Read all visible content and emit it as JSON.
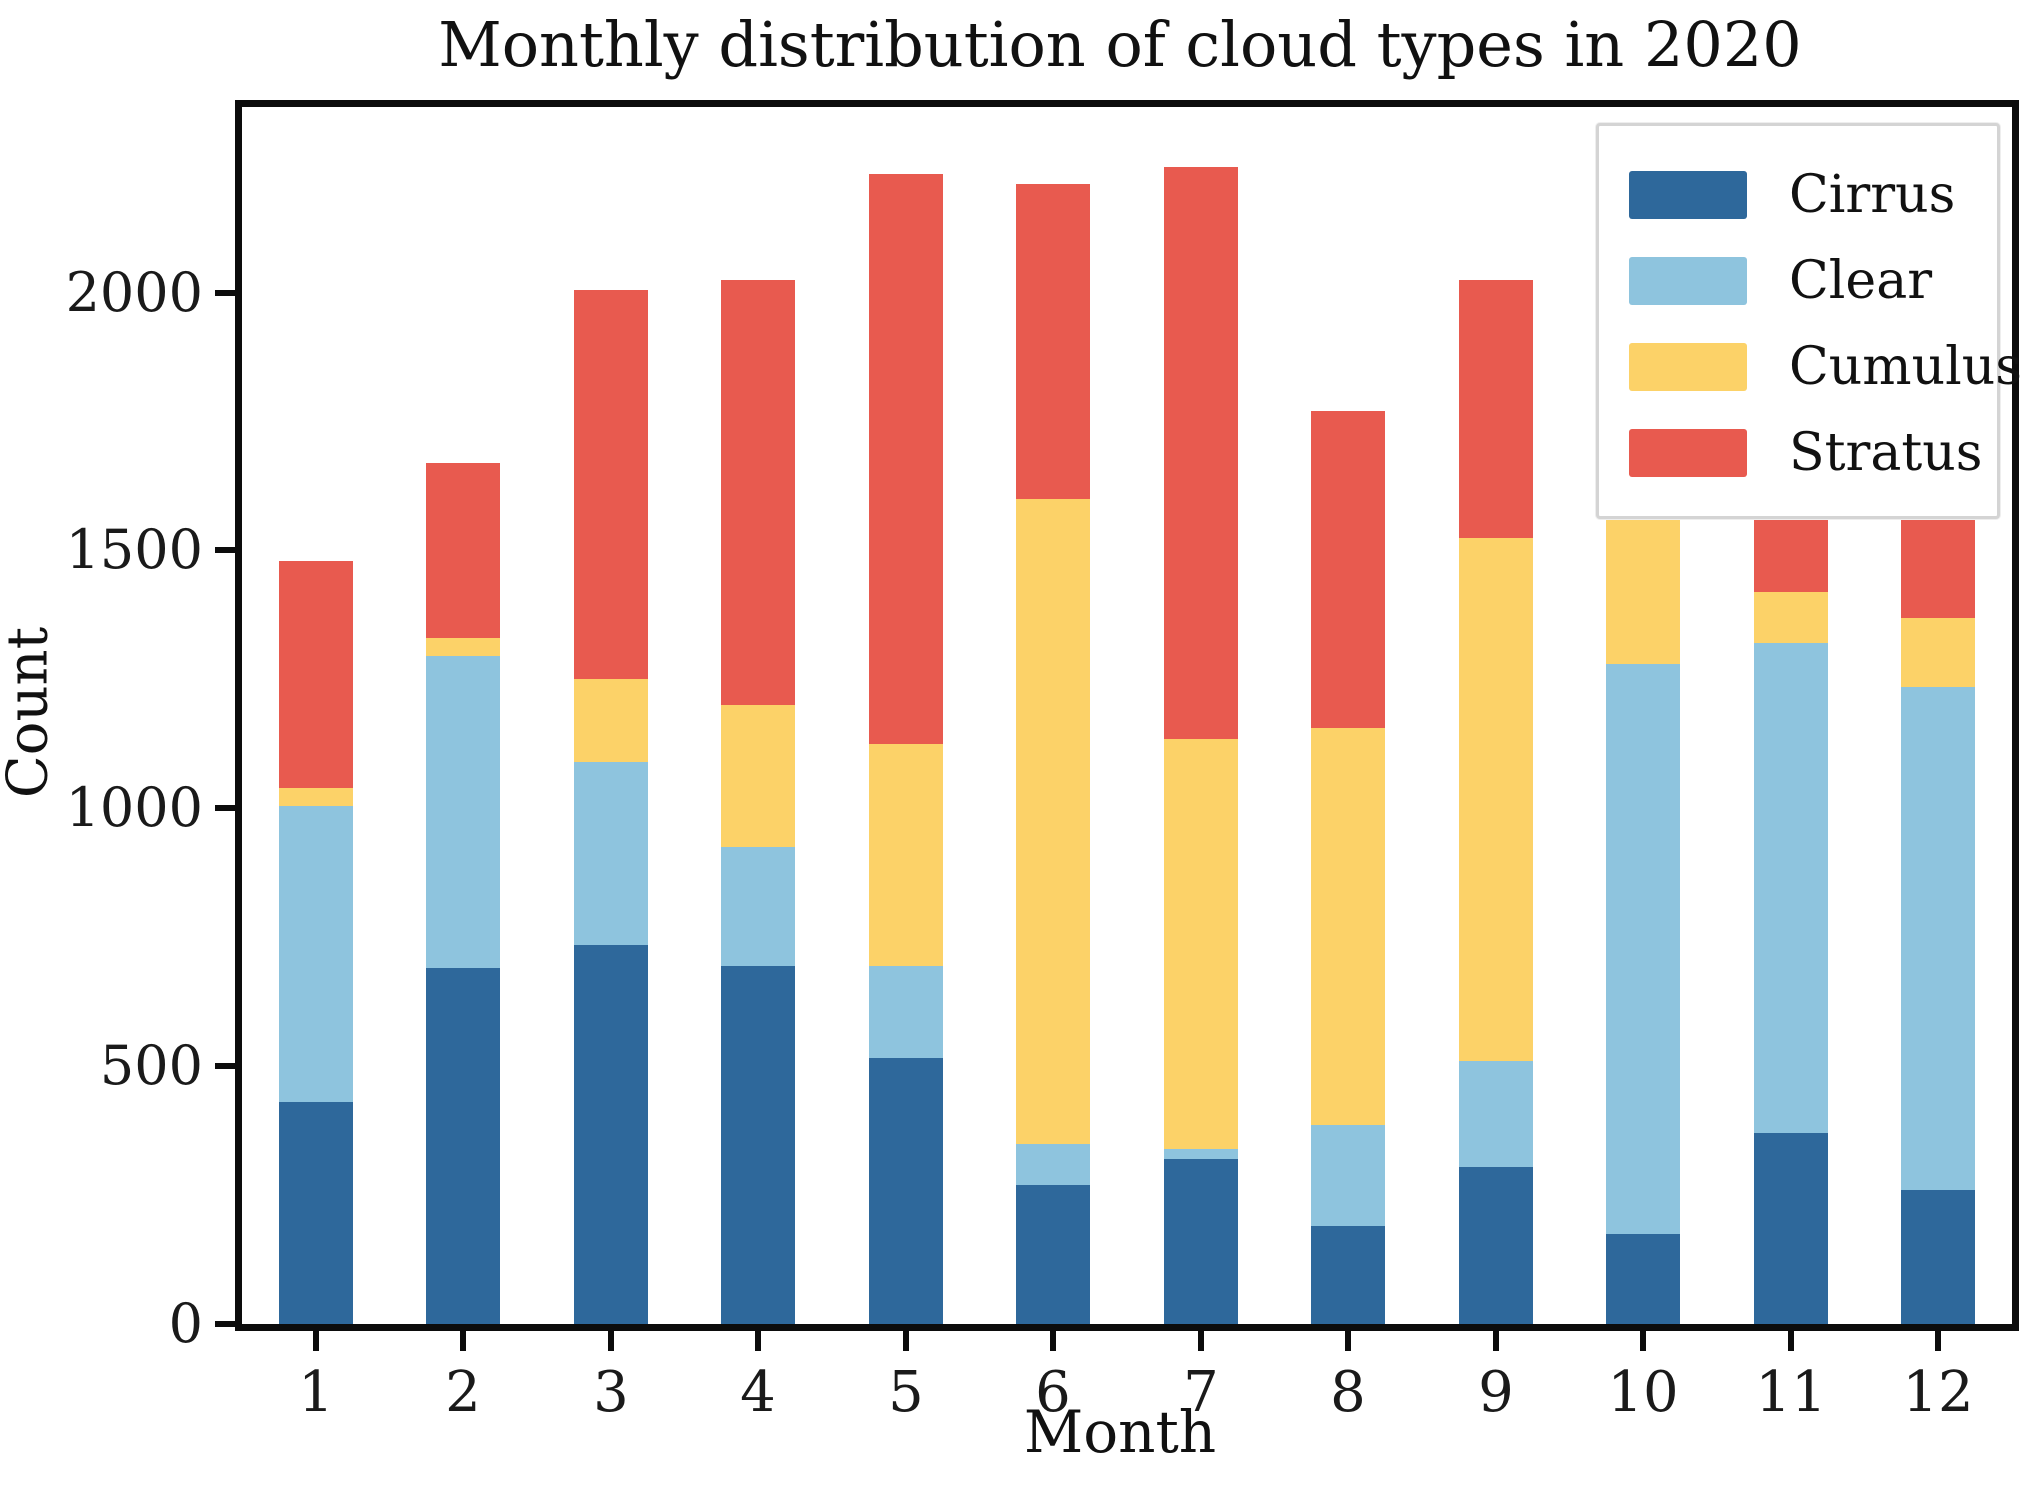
{
  "chart_data": {
    "type": "bar",
    "stacked": true,
    "title": "Monthly distribution of cloud types in 2020",
    "xlabel": "Month",
    "ylabel": "Count",
    "categories": [
      "1",
      "2",
      "3",
      "4",
      "5",
      "6",
      "7",
      "8",
      "9",
      "10",
      "11",
      "12"
    ],
    "series": [
      {
        "name": "Cirrus",
        "color": "#2E689B",
        "values": [
          430,
          690,
          735,
          695,
          515,
          270,
          320,
          190,
          305,
          175,
          370,
          260
        ]
      },
      {
        "name": "Clear",
        "color": "#8EC4DE",
        "values": [
          575,
          605,
          355,
          230,
          180,
          80,
          20,
          195,
          205,
          1105,
          950,
          975
        ]
      },
      {
        "name": "Cumulus",
        "color": "#FCD268",
        "values": [
          35,
          35,
          160,
          275,
          430,
          1250,
          795,
          770,
          1015,
          355,
          100,
          135
        ]
      },
      {
        "name": "Stratus",
        "color": "#E85A4F",
        "values": [
          440,
          340,
          755,
          825,
          1105,
          610,
          1110,
          615,
          500,
          0,
          180,
          190
        ]
      }
    ],
    "totals": [
      1480,
      1670,
      2005,
      2025,
      2230,
      2210,
      2245,
      1770,
      2025,
      1635,
      1600,
      1560
    ],
    "yticks": [
      0,
      500,
      1000,
      1500,
      2000
    ],
    "ylim": [
      0,
      2360
    ],
    "xlim_labels_all_shown": true,
    "grid": false,
    "legend_position": "upper right",
    "bar_width_fraction": 0.5,
    "axis_color": "#0c0c0c"
  }
}
